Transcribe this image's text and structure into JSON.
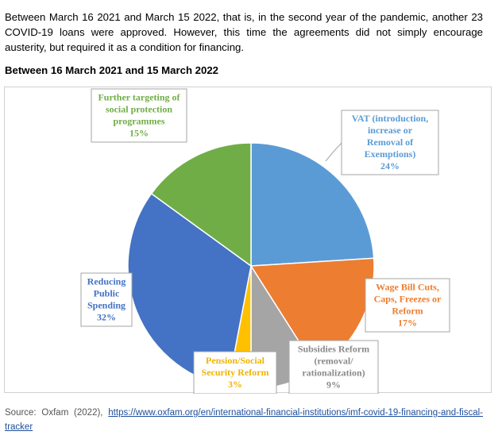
{
  "intro_text": "Between March 16 2021 and March 15 2022, that is, in the second year of the pandemic, another 23 COVID-19 loans were approved. However, this time the agreements did not simply encourage austerity, but required it as a condition for financing.",
  "heading": "Between 16 March 2021 and 15 March 2022",
  "source": {
    "prefix": "Source:  Oxfam  (2022),",
    "link": "https://www.oxfam.org/en/international-financial-institutions/imf-covid-19-financing-and-fiscal-tracker"
  },
  "chart_data": {
    "type": "pie",
    "title": "",
    "start_angle_deg": 0,
    "direction": "clockwise",
    "slices": [
      {
        "label_lines": [
          "VAT (introduction,",
          "increase or",
          "Removal of",
          "Exemptions)"
        ],
        "value": 24,
        "pct_label": "24%",
        "color": "#5b9bd5",
        "text_color": "#5b9bd5"
      },
      {
        "label_lines": [
          "Wage Bill Cuts,",
          "Caps, Freezes or",
          "Reform"
        ],
        "value": 17,
        "pct_label": "17%",
        "color": "#ed7d31",
        "text_color": "#ed7d31"
      },
      {
        "label_lines": [
          "Subsidies Reform",
          "(removal/",
          "rationalization)"
        ],
        "value": 9,
        "pct_label": "9%",
        "color": "#a5a5a5",
        "text_color": "#8a8a8a"
      },
      {
        "label_lines": [
          "Pension/Social",
          "Security Reform"
        ],
        "value": 3,
        "pct_label": "3%",
        "color": "#ffc000",
        "text_color": "#f0b400"
      },
      {
        "label_lines": [
          "Reducing",
          "Public",
          "Spending"
        ],
        "value": 32,
        "pct_label": "32%",
        "color": "#4472c4",
        "text_color": "#4472c4"
      },
      {
        "label_lines": [
          "Further targeting of",
          "social protection",
          "programmes"
        ],
        "value": 15,
        "pct_label": "15%",
        "color": "#70ad47",
        "text_color": "#70ad47"
      }
    ]
  }
}
